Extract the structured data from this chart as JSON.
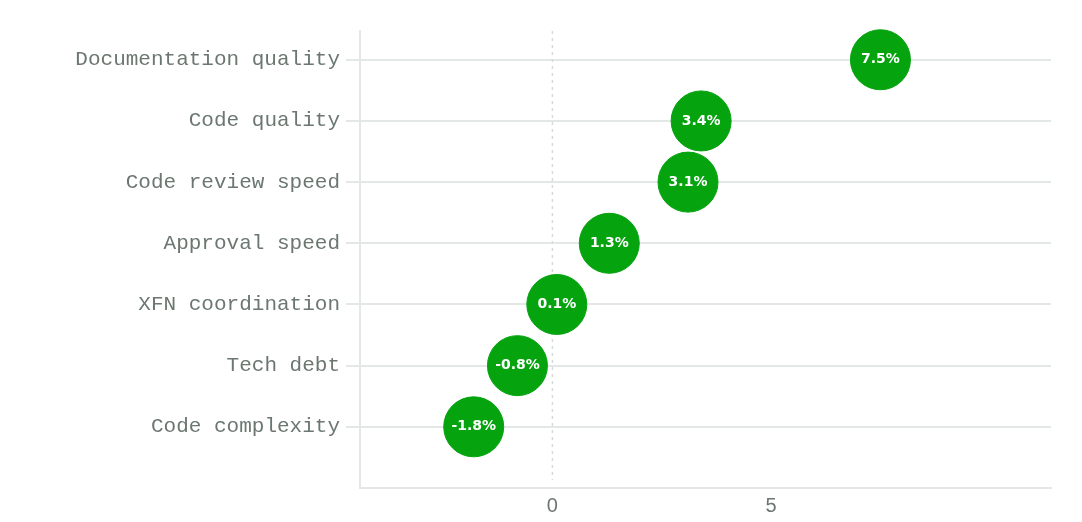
{
  "chart_data": {
    "type": "scatter",
    "orientation": "horizontal",
    "categories": [
      "Documentation quality",
      "Code quality",
      "Code review speed",
      "Approval speed",
      "XFN coordination",
      "Tech debt",
      "Code complexity"
    ],
    "values": [
      7.5,
      3.4,
      3.1,
      1.3,
      0.1,
      -0.8,
      -1.8
    ],
    "value_labels": [
      "7.5%",
      "3.4%",
      "3.1%",
      "1.3%",
      "0.1%",
      "-0.8%",
      "-1.8%"
    ],
    "color": "#05a40f",
    "marker": "circle",
    "xlim": [
      -4.4,
      11.4
    ],
    "xticks": [
      0,
      5
    ],
    "grid": "y",
    "ref_lines": [
      {
        "axis": "x",
        "value": 0,
        "line_style": "dotted",
        "color": "#d5dbd8"
      }
    ]
  }
}
